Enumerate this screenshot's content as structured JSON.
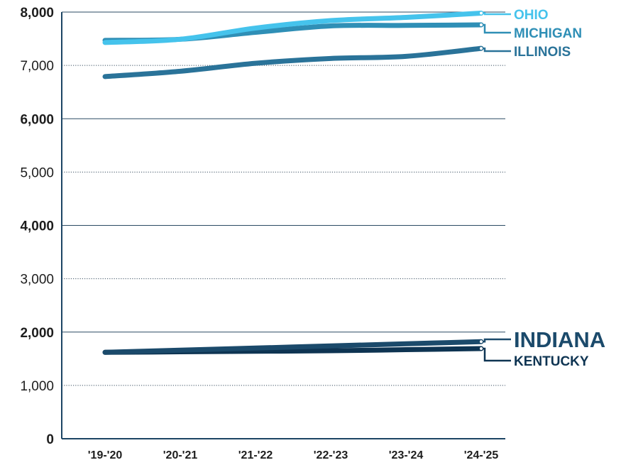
{
  "chart_data": {
    "type": "line",
    "title": "",
    "xlabel": "",
    "ylabel": "",
    "categories": [
      "'19-'20",
      "'20-'21",
      "'21-'22",
      "'22-'23",
      "'23-'24",
      "'24-'25"
    ],
    "ylim": [
      0,
      8000
    ],
    "y_ticks": [
      {
        "value": 0,
        "label": "0",
        "bold": true
      },
      {
        "value": 1000,
        "label": "1,000",
        "bold": false
      },
      {
        "value": 2000,
        "label": "2,000",
        "bold": true
      },
      {
        "value": 3000,
        "label": "3,000",
        "bold": false
      },
      {
        "value": 4000,
        "label": "4,000",
        "bold": true
      },
      {
        "value": 5000,
        "label": "5,000",
        "bold": false
      },
      {
        "value": 6000,
        "label": "6,000",
        "bold": true
      },
      {
        "value": 7000,
        "label": "7,000",
        "bold": false
      },
      {
        "value": 8000,
        "label": "8,000",
        "bold": true
      }
    ],
    "grid": {
      "major_solid": [
        2000,
        4000,
        6000,
        8000
      ],
      "minor_dotted": [
        1000,
        3000,
        5000,
        7000
      ]
    },
    "legend": "direct-labels-right",
    "series": [
      {
        "name": "OHIO",
        "color": "#45c3ec",
        "values": [
          7430,
          7490,
          7700,
          7840,
          7900,
          7980
        ]
      },
      {
        "name": "MICHIGAN",
        "color": "#2f8fb6",
        "values": [
          7470,
          7490,
          7620,
          7740,
          7750,
          7760
        ]
      },
      {
        "name": "ILLINOIS",
        "color": "#2a7399",
        "values": [
          6790,
          6890,
          7040,
          7130,
          7170,
          7320
        ]
      },
      {
        "name": "INDIANA",
        "color": "#1b4a6b",
        "values": [
          1620,
          1660,
          1700,
          1740,
          1780,
          1820
        ]
      },
      {
        "name": "KENTUCKY",
        "color": "#0e3452",
        "values": [
          1620,
          1630,
          1640,
          1650,
          1670,
          1690
        ]
      }
    ]
  }
}
